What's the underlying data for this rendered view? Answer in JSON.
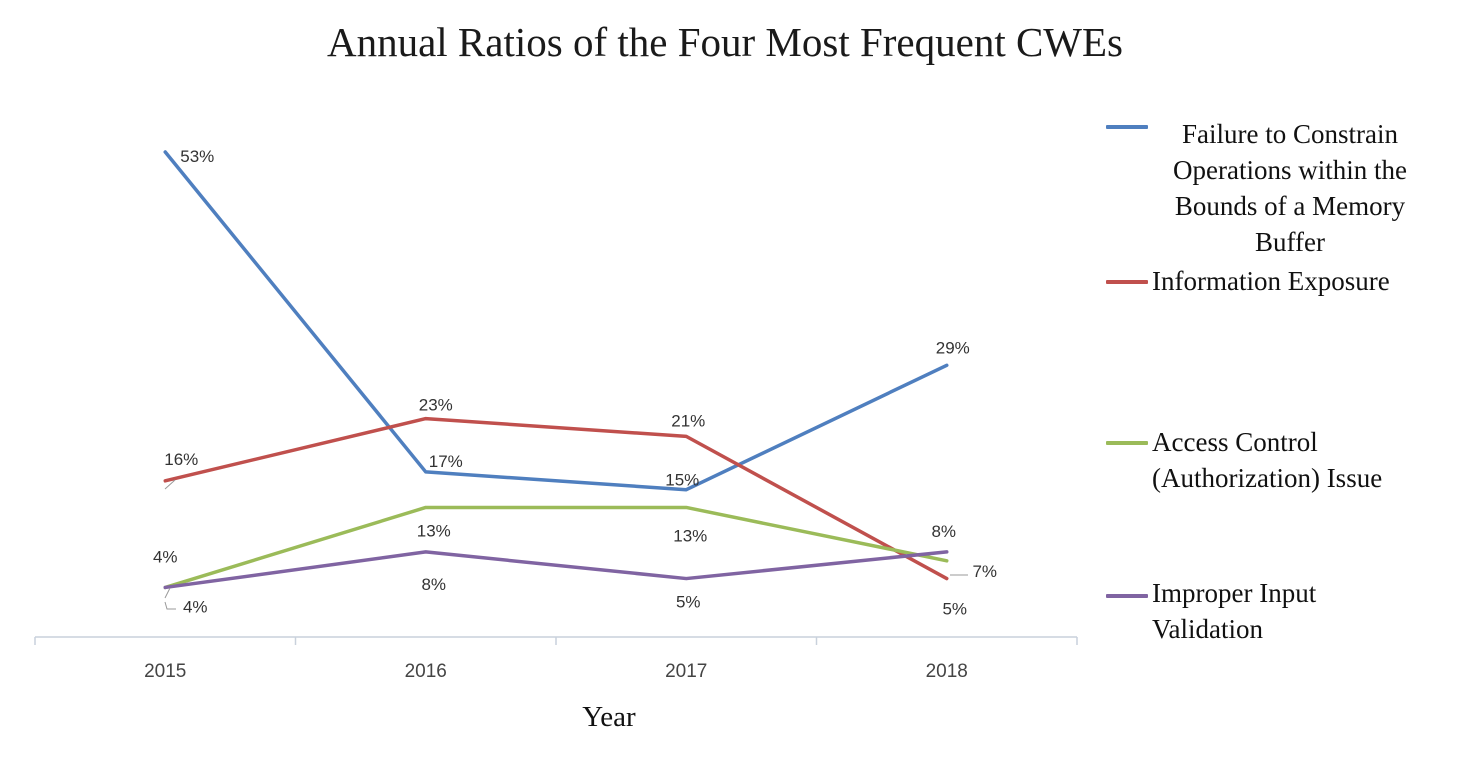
{
  "chart_data": {
    "type": "line",
    "title": "Annual Ratios of the Four Most Frequent CWEs",
    "xlabel": "Year",
    "ylabel": "",
    "categories": [
      "2015",
      "2016",
      "2017",
      "2018"
    ],
    "ylim": [
      0,
      60
    ],
    "grid": false,
    "legend": "right",
    "series": [
      {
        "name": "Failure to Constrain Operations within the Bounds of a Memory Buffer",
        "color": "#4F7FBF",
        "values": [
          53,
          17,
          15,
          29
        ],
        "labels": [
          "53%",
          "17%",
          "15%",
          "29%"
        ]
      },
      {
        "name": "Information Exposure",
        "color": "#C0504D",
        "values": [
          16,
          23,
          21,
          5
        ],
        "labels": [
          "16%",
          "23%",
          "21%",
          "5%"
        ]
      },
      {
        "name": "Access Control (Authorization) Issue",
        "color": "#9BBB59",
        "values": [
          4,
          13,
          13,
          7
        ],
        "labels": [
          "4%",
          "13%",
          "13%",
          "7%"
        ]
      },
      {
        "name": "Improper Input Validation",
        "color": "#8064A2",
        "values": [
          4,
          8,
          5,
          8
        ],
        "labels": [
          "4%",
          "8%",
          "5%",
          "8%"
        ]
      }
    ]
  }
}
